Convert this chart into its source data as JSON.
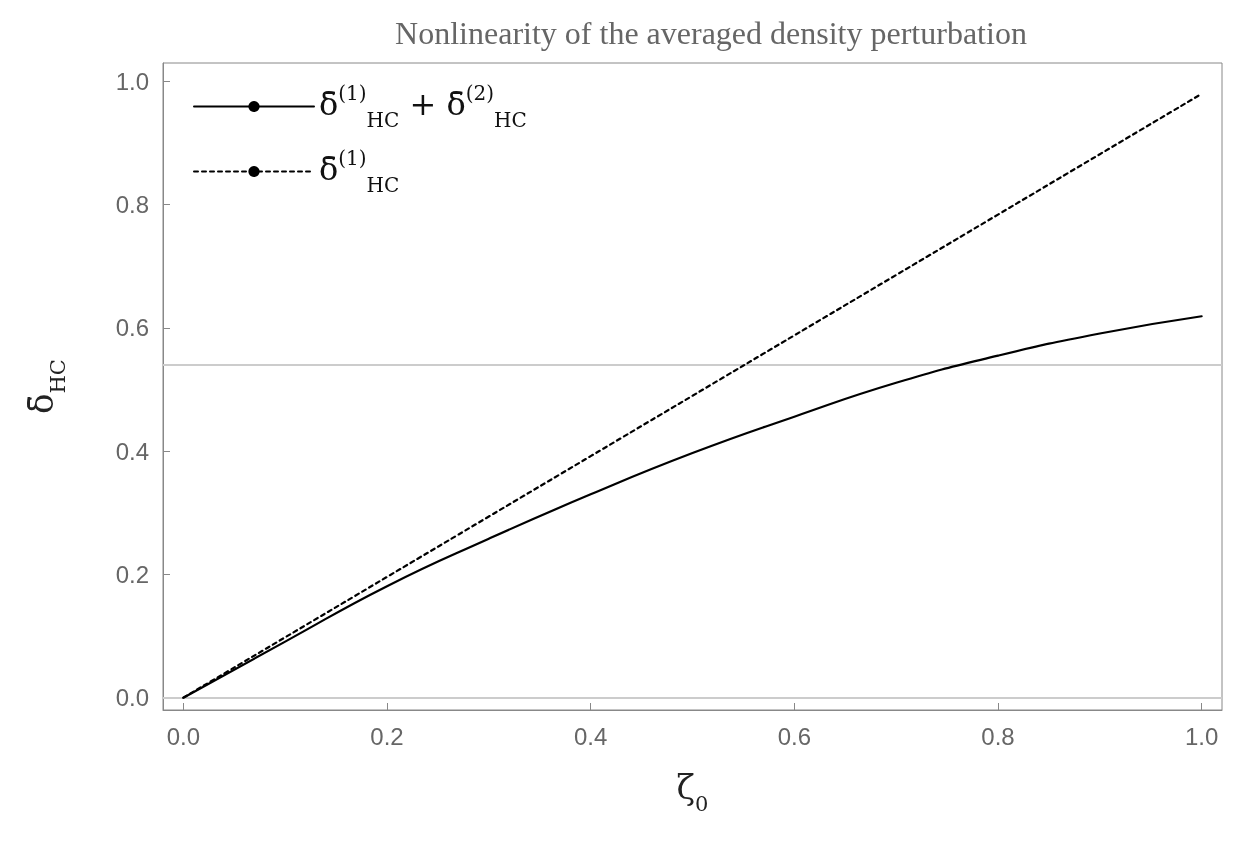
{
  "chart_data": {
    "type": "line",
    "title": "Nonlinearity of the averaged density perturbation",
    "xlabel": "ζ$_{0}$",
    "ylabel": "δ̄$_{HC}$",
    "x": [
      0,
      0.1,
      0.2,
      0.3,
      0.4,
      0.5,
      0.6,
      0.7,
      0.8,
      0.9,
      1.0
    ],
    "series": [
      {
        "name": "δ̄$^{(1)}$$_{HC}$ + δ̄$^{(2)}$$_{HC}$",
        "color": "#000000",
        "line_style": "solid",
        "values": [
          0,
          0.091,
          0.181,
          0.258,
          0.33,
          0.397,
          0.456,
          0.511,
          0.555,
          0.591,
          0.619
        ]
      },
      {
        "name": "δ̄$^{(1)}$$_{HC}$",
        "color": "#000000",
        "line_style": "dotted",
        "values": [
          0,
          0.098,
          0.196,
          0.294,
          0.392,
          0.49,
          0.588,
          0.686,
          0.784,
          0.882,
          0.98
        ]
      }
    ],
    "xlim": [
      -0.02,
      1.02
    ],
    "xticks": [
      {
        "value": 0,
        "label": "0.0"
      },
      0.2,
      0.4,
      0.6,
      0.8,
      {
        "value": 1,
        "label": "1.0"
      }
    ],
    "ylim": [
      -0.02,
      1.03
    ],
    "yticks": [
      {
        "value": 0,
        "label": "0.0"
      },
      0.2,
      0.4,
      0.6,
      0.8,
      {
        "value": 1,
        "label": "1.0"
      }
    ],
    "ref_lines": [
      {
        "axis": "y",
        "value": 0,
        "color": "#cccccc"
      },
      {
        "axis": "y",
        "value": 0.54,
        "color": "#cccccc"
      }
    ],
    "grid": false,
    "legend": "top left",
    "marker": "none"
  }
}
